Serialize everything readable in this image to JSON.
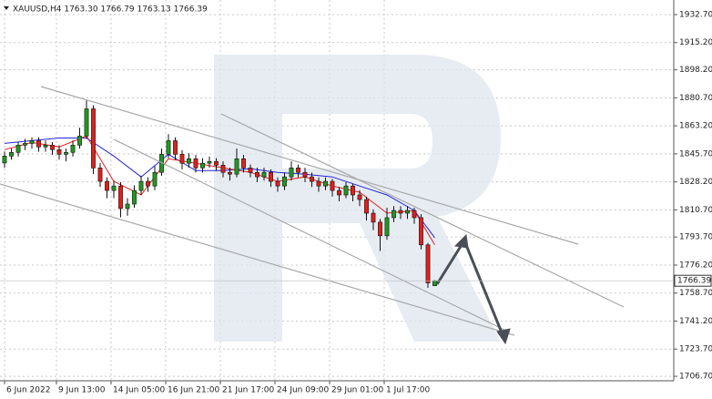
{
  "chart_data": {
    "type": "candlestick",
    "header": "XAUUSD,H4  1763.30 1766.79 1763.13 1766.39",
    "x": [
      0,
      1,
      2,
      3,
      4,
      5,
      6,
      7,
      8,
      9,
      10,
      11,
      12,
      13,
      14,
      15,
      16,
      17,
      18,
      19,
      20,
      21,
      22,
      23,
      24,
      25,
      26,
      27,
      28,
      29,
      30,
      31,
      32,
      33,
      34,
      35,
      36,
      37,
      38,
      39,
      40,
      41,
      42,
      43,
      44,
      45,
      46,
      47,
      48,
      49,
      50,
      51,
      52,
      53,
      54,
      55,
      56,
      57,
      58,
      59,
      60,
      61,
      62,
      63
    ],
    "open": [
      1840.0,
      1844.3,
      1846.6,
      1851.1,
      1852.2,
      1853.9,
      1850.0,
      1851.1,
      1848.3,
      1845.4,
      1846.6,
      1851.1,
      1856.8,
      1873.8,
      1836.9,
      1828.5,
      1822.8,
      1825.6,
      1811.5,
      1814.3,
      1822.8,
      1828.5,
      1825.6,
      1834.1,
      1845.4,
      1853.9,
      1845.4,
      1839.8,
      1842.6,
      1836.9,
      1839.8,
      1840.9,
      1838.6,
      1834.1,
      1833.0,
      1842.6,
      1836.9,
      1834.1,
      1831.3,
      1834.1,
      1828.5,
      1825.6,
      1831.3,
      1836.9,
      1834.1,
      1831.3,
      1828.5,
      1825.6,
      1828.5,
      1822.8,
      1820.0,
      1825.6,
      1820.0,
      1817.1,
      1808.6,
      1803.0,
      1794.5,
      1805.8,
      1810.3,
      1808.6,
      1810.3,
      1805.8,
      1788.8,
      1763.3
    ],
    "high": [
      1847,
      1849,
      1853,
      1855,
      1856,
      1856,
      1854,
      1853,
      1851,
      1849,
      1854,
      1862,
      1879,
      1876,
      1840,
      1831,
      1829,
      1828,
      1818,
      1826,
      1832,
      1831,
      1838,
      1849,
      1858,
      1856,
      1848,
      1846,
      1845,
      1843,
      1844,
      1843,
      1841,
      1837,
      1849,
      1845,
      1839,
      1837,
      1837,
      1836,
      1831,
      1834,
      1841,
      1839,
      1837,
      1834,
      1831,
      1831,
      1830,
      1825,
      1828,
      1827,
      1823,
      1819,
      1811,
      1805,
      1812,
      1813,
      1813,
      1813,
      1812,
      1808,
      1790,
      1766.79
    ],
    "low": [
      1837,
      1842,
      1844,
      1848,
      1849,
      1847,
      1847,
      1845,
      1842,
      1841,
      1844,
      1849,
      1855,
      1833,
      1825,
      1818,
      1818,
      1806,
      1807,
      1812,
      1820,
      1822,
      1823,
      1832,
      1843,
      1842,
      1836,
      1837,
      1834,
      1834,
      1837,
      1835,
      1831,
      1829,
      1831,
      1834,
      1831,
      1828,
      1829,
      1825,
      1822,
      1823,
      1829,
      1831,
      1828,
      1825,
      1822,
      1823,
      1819,
      1816,
      1818,
      1816,
      1813,
      1804,
      1798,
      1785,
      1792,
      1803,
      1805,
      1805,
      1802,
      1786,
      1762,
      1763.13
    ],
    "close": [
      1844.3,
      1846.6,
      1851.1,
      1852.2,
      1853.9,
      1850.0,
      1851.1,
      1848.3,
      1845.4,
      1846.6,
      1851.1,
      1856.8,
      1873.8,
      1836.9,
      1828.5,
      1822.8,
      1825.6,
      1811.5,
      1814.3,
      1822.8,
      1828.5,
      1825.6,
      1834.1,
      1845.4,
      1853.9,
      1845.4,
      1839.8,
      1842.6,
      1836.9,
      1839.8,
      1840.9,
      1838.6,
      1834.1,
      1833.0,
      1842.6,
      1836.9,
      1834.1,
      1831.3,
      1834.1,
      1828.5,
      1825.6,
      1831.3,
      1836.9,
      1834.1,
      1831.3,
      1828.5,
      1825.6,
      1828.5,
      1822.8,
      1820.0,
      1825.6,
      1820.0,
      1817.1,
      1808.6,
      1803.0,
      1794.5,
      1805.8,
      1810.3,
      1808.6,
      1810.3,
      1805.8,
      1788.8,
      1765.0,
      1766.39
    ],
    "up_color": "#1f9a1f",
    "down_color": "#e0201c",
    "lines": [
      {
        "color": "#2323d8",
        "x": [
          0,
          4,
          8,
          12,
          16,
          20,
          24,
          28,
          32,
          36,
          40,
          44,
          48,
          52,
          56,
          60,
          63
        ],
        "values": [
          1852.2,
          1853.9,
          1855.6,
          1855.6,
          1844.3,
          1831.3,
          1845.4,
          1835.2,
          1835.2,
          1836.4,
          1834.1,
          1833.0,
          1831.3,
          1825.6,
          1820.0,
          1810.3,
          1793.3
        ]
      },
      {
        "color": "#e0201c",
        "x": [
          0,
          4,
          8,
          12,
          16,
          20,
          24,
          28,
          32,
          36,
          40,
          44,
          48,
          52,
          56,
          60,
          63
        ],
        "values": [
          1848.3,
          1852.8,
          1850.0,
          1856.8,
          1828.5,
          1820.0,
          1842.6,
          1839.8,
          1836.9,
          1834.1,
          1828.5,
          1831.3,
          1825.6,
          1821.7,
          1808.6,
          1810.3,
          1788.8
        ]
      }
    ],
    "xlim": [
      -0.667,
      98
    ],
    "xticks": [
      {
        "value": 0,
        "label": "6 Jun 2022"
      },
      {
        "value": 7.6,
        "label": "9 Jun 13:00"
      },
      {
        "value": 15.6,
        "label": "14 Jun 05:00"
      },
      {
        "value": 23.6,
        "label": "16 Jun 21:00"
      },
      {
        "value": 31.6,
        "label": "21 Jun 17:00"
      },
      {
        "value": 39.6,
        "label": "24 Jun 09:00"
      },
      {
        "value": 47.6,
        "label": "29 Jun 01:00"
      },
      {
        "value": 55.6,
        "label": "1 Jul 17:00"
      }
    ],
    "ylim": [
      1703.9,
      1941.8
    ],
    "yticks": [
      {
        "value": 1932.7,
        "label": "1932.70"
      },
      {
        "value": 1915.2,
        "label": "1915.20"
      },
      {
        "value": 1898.2,
        "label": "1898.20"
      },
      {
        "value": 1880.7,
        "label": "1880.70"
      },
      {
        "value": 1863.2,
        "label": "1863.20"
      },
      {
        "value": 1845.7,
        "label": "1845.70"
      },
      {
        "value": 1828.2,
        "label": "1828.20"
      },
      {
        "value": 1810.7,
        "label": "1810.70"
      },
      {
        "value": 1793.7,
        "label": "1793.70"
      },
      {
        "value": 1776.2,
        "label": "1776.20"
      },
      {
        "value": 1758.7,
        "label": "1758.70"
      },
      {
        "value": 1741.2,
        "label": "1741.20"
      },
      {
        "value": 1723.7,
        "label": "1723.70"
      },
      {
        "value": 1706.7,
        "label": "1706.70"
      }
    ],
    "grid": true
  }
}
